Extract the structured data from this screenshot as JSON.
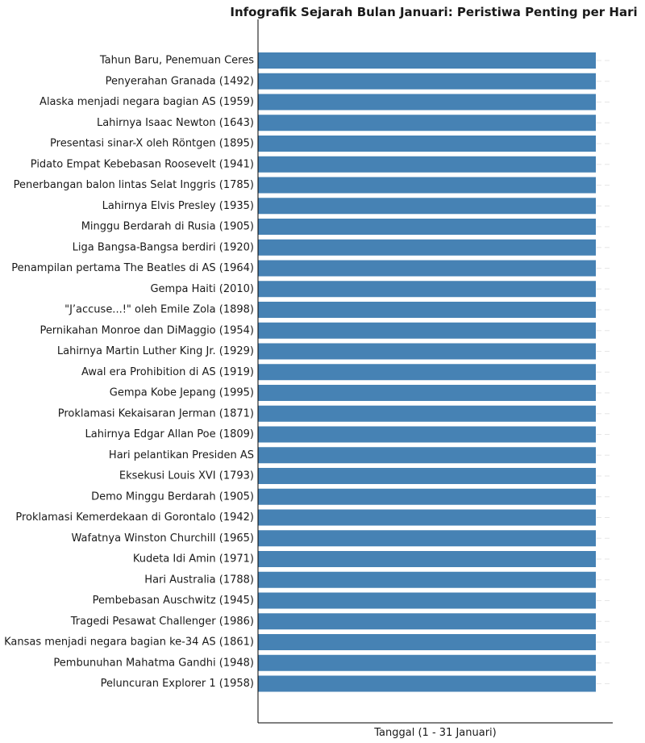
{
  "chart_data": {
    "type": "bar",
    "orientation": "horizontal",
    "title": "Infografik Sejarah Bulan Januari: Peristiwa Penting per Hari",
    "xlabel": "Tanggal (1 - 31 Januari)",
    "ylabel": "",
    "bar_color": "#4682b4",
    "grid": true,
    "categories": [
      "Tahun Baru, Penemuan Ceres",
      "Penyerahan Granada (1492)",
      "Alaska menjadi negara bagian AS (1959)",
      "Lahirnya Isaac Newton (1643)",
      "Presentasi sinar-X oleh Röntgen (1895)",
      "Pidato Empat Kebebasan Roosevelt (1941)",
      "Penerbangan balon lintas Selat Inggris (1785)",
      "Lahirnya Elvis Presley (1935)",
      "Minggu Berdarah di Rusia (1905)",
      "Liga Bangsa-Bangsa berdiri (1920)",
      "Penampilan pertama The Beatles di AS (1964)",
      "Gempa Haiti (2010)",
      "\"J’accuse...!\" oleh Emile Zola (1898)",
      "Pernikahan Monroe dan DiMaggio (1954)",
      "Lahirnya Martin Luther King Jr. (1929)",
      "Awal era Prohibition di AS (1919)",
      "Gempa Kobe Jepang (1995)",
      "Proklamasi Kekaisaran Jerman (1871)",
      "Lahirnya Edgar Allan Poe (1809)",
      "Hari pelantikan Presiden AS",
      "Eksekusi Louis XVI (1793)",
      "Demo Minggu Berdarah (1905)",
      "Proklamasi Kemerdekaan di Gorontalo (1942)",
      "Wafatnya Winston Churchill (1965)",
      "Kudeta Idi Amin (1971)",
      "Hari Australia (1788)",
      "Pembebasan Auschwitz (1945)",
      "Tragedi Pesawat Challenger (1986)",
      "Kansas menjadi negara bagian ke-34 AS (1861)",
      "Pembunuhan Mahatma Gandhi (1948)",
      "Peluncuran Explorer 1 (1958)"
    ],
    "values": [
      1,
      1,
      1,
      1,
      1,
      1,
      1,
      1,
      1,
      1,
      1,
      1,
      1,
      1,
      1,
      1,
      1,
      1,
      1,
      1,
      1,
      1,
      1,
      1,
      1,
      1,
      1,
      1,
      1,
      1,
      1
    ],
    "xlim": [
      0,
      1.05
    ]
  }
}
